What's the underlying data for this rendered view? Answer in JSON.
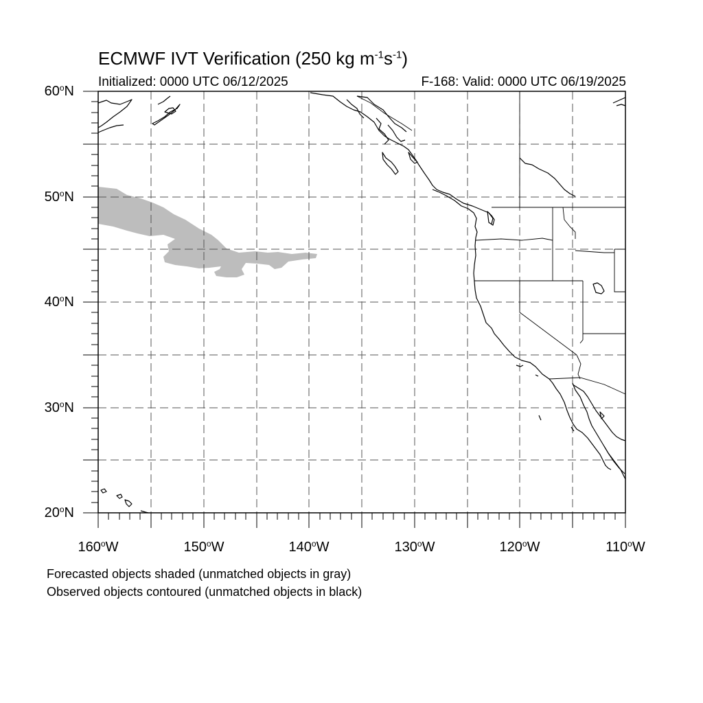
{
  "title": {
    "main": "ECMWF IVT Verification (250 kg m",
    "exp1": "-1",
    "s": "s",
    "exp2": "-1",
    "close": ")"
  },
  "subtitle_left": "Initialized: 0000 UTC 06/12/2025",
  "subtitle_right": "F-168: Valid: 0000 UTC 06/19/2025",
  "lat_labels": [
    "60",
    "50",
    "40",
    "30",
    "20"
  ],
  "lat_suffix": "N",
  "lon_labels": [
    "160",
    "150",
    "140",
    "130",
    "120",
    "110"
  ],
  "lon_suffix": "W",
  "degree_symbol": "o",
  "footnotes": [
    "Forecasted objects shaded (unmatched objects in gray)",
    "Observed objects contoured (unmatched objects in black)"
  ],
  "map": {
    "lat_range": [
      20,
      60
    ],
    "lon_range": [
      -160,
      -110
    ],
    "grid_spacing_deg": 5,
    "projection": "cylindrical equidistant",
    "coastlines": "black",
    "gridlines": "dashed gray",
    "forecast_object_color": "#bdbdbd",
    "forecast_object_status": "unmatched",
    "observed_objects": "none shown"
  }
}
